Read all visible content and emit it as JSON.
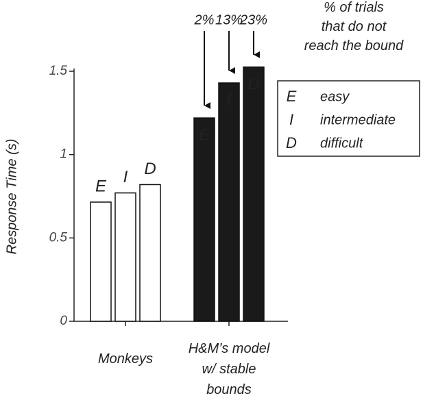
{
  "chart_data": {
    "type": "bar",
    "y_label": "Response Time (s)",
    "categories": [
      "Monkeys",
      "H&M’s model w/ stable bounds"
    ],
    "category_colors": [
      "#ffffff",
      "#1a1a1a"
    ],
    "series": [
      {
        "letter": "E",
        "name": "easy",
        "values": [
          0.715,
          1.22
        ]
      },
      {
        "letter": "I",
        "name": "intermediate",
        "values": [
          0.77,
          1.43
        ]
      },
      {
        "letter": "D",
        "name": "difficult",
        "values": [
          0.82,
          1.525
        ]
      }
    ],
    "ylim": [
      0,
      1.5
    ],
    "yticks": [
      0,
      0.5,
      1,
      1.5
    ],
    "not_reaching_bound": {
      "label": "% of trials that do not reach the bound",
      "values": [
        2,
        13,
        23
      ],
      "value_labels": [
        "2%",
        "13%",
        "23%"
      ]
    }
  }
}
